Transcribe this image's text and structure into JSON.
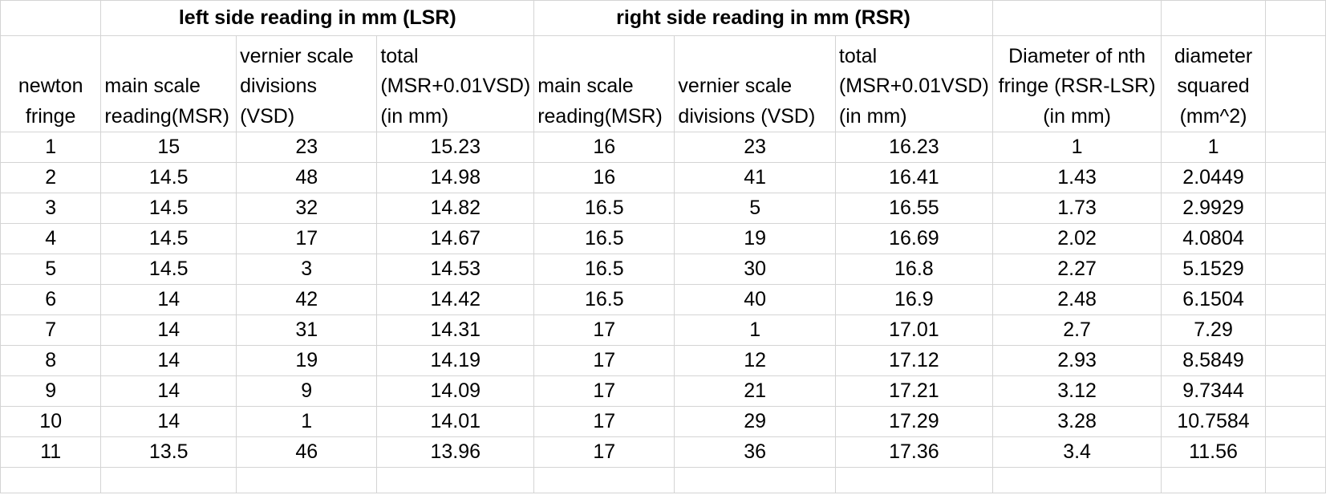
{
  "groups": {
    "lsr": "left side reading in mm (LSR)",
    "rsr": "right side reading in mm (RSR)"
  },
  "headers": {
    "fringe": [
      "newton",
      "fringe"
    ],
    "lsr_msr": [
      "main scale",
      "reading(MSR)"
    ],
    "lsr_vsd": [
      "vernier scale",
      "divisions",
      "(VSD)"
    ],
    "lsr_total": [
      "total",
      "(MSR+0.01VSD)",
      "(in mm)"
    ],
    "rsr_msr": [
      "main scale",
      "reading(MSR)"
    ],
    "rsr_vsd": [
      "vernier scale",
      "divisions (VSD)"
    ],
    "rsr_total": [
      "total",
      "(MSR+0.01VSD)",
      "(in mm)"
    ],
    "diameter": [
      "Diameter of nth",
      "fringe (RSR-LSR)",
      "(in mm)"
    ],
    "squared": [
      "diameter",
      "squared",
      "(mm^2)"
    ]
  },
  "rows": [
    [
      "1",
      "15",
      "23",
      "15.23",
      "16",
      "23",
      "16.23",
      "1",
      "1"
    ],
    [
      "2",
      "14.5",
      "48",
      "14.98",
      "16",
      "41",
      "16.41",
      "1.43",
      "2.0449"
    ],
    [
      "3",
      "14.5",
      "32",
      "14.82",
      "16.5",
      "5",
      "16.55",
      "1.73",
      "2.9929"
    ],
    [
      "4",
      "14.5",
      "17",
      "14.67",
      "16.5",
      "19",
      "16.69",
      "2.02",
      "4.0804"
    ],
    [
      "5",
      "14.5",
      "3",
      "14.53",
      "16.5",
      "30",
      "16.8",
      "2.27",
      "5.1529"
    ],
    [
      "6",
      "14",
      "42",
      "14.42",
      "16.5",
      "40",
      "16.9",
      "2.48",
      "6.1504"
    ],
    [
      "7",
      "14",
      "31",
      "14.31",
      "17",
      "1",
      "17.01",
      "2.7",
      "7.29"
    ],
    [
      "8",
      "14",
      "19",
      "14.19",
      "17",
      "12",
      "17.12",
      "2.93",
      "8.5849"
    ],
    [
      "9",
      "14",
      "9",
      "14.09",
      "17",
      "21",
      "17.21",
      "3.12",
      "9.7344"
    ],
    [
      "10",
      "14",
      "1",
      "14.01",
      "17",
      "29",
      "17.29",
      "3.28",
      "10.7584"
    ],
    [
      "11",
      "13.5",
      "46",
      "13.96",
      "17",
      "36",
      "17.36",
      "3.4",
      "11.56"
    ]
  ]
}
